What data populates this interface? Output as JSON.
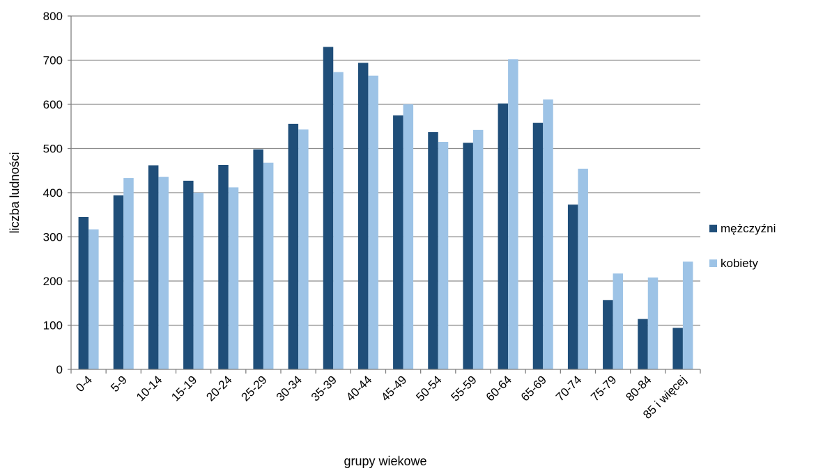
{
  "colors": {
    "mezczyzni": "#1f4e79",
    "kobiety": "#9dc3e6",
    "grid": "#8c8c8c",
    "axis": "#7f7f7f"
  },
  "chart_data": {
    "type": "bar",
    "title": "",
    "xlabel": "grupy wiekowe",
    "ylabel": "liczba ludności",
    "ylim": [
      0,
      800
    ],
    "yticks": [
      0,
      100,
      200,
      300,
      400,
      500,
      600,
      700,
      800
    ],
    "grid": true,
    "legend_position": "right",
    "categories": [
      "0-4",
      "5-9",
      "10-14",
      "15-19",
      "20-24",
      "25-29",
      "30-34",
      "35-39",
      "40-44",
      "45-49",
      "50-54",
      "55-59",
      "60-64",
      "65-69",
      "70-74",
      "75-79",
      "80-84",
      "85 i więcej"
    ],
    "series": [
      {
        "name": "mężczyźni",
        "color": "#1f4e79",
        "values": [
          345,
          394,
          462,
          427,
          463,
          498,
          556,
          730,
          694,
          575,
          537,
          513,
          602,
          558,
          373,
          157,
          114,
          94
        ]
      },
      {
        "name": "kobiety",
        "color": "#9dc3e6",
        "values": [
          317,
          433,
          436,
          400,
          412,
          468,
          543,
          673,
          665,
          600,
          515,
          542,
          702,
          611,
          454,
          217,
          208,
          244
        ]
      }
    ]
  }
}
